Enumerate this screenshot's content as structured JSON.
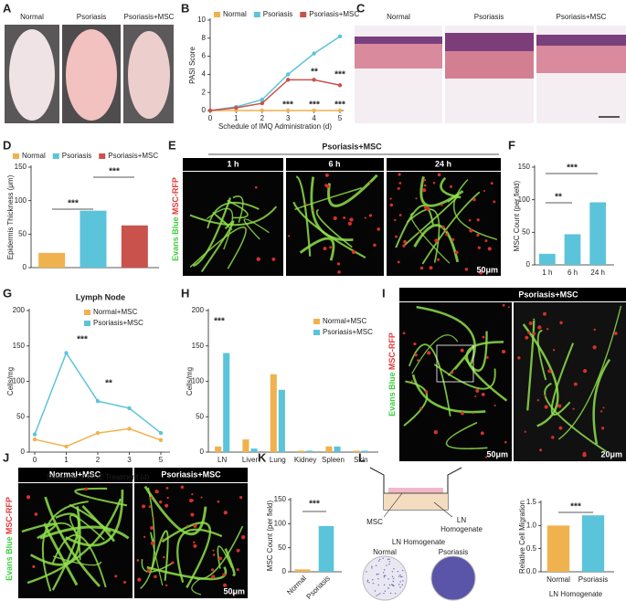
{
  "panel_labels": [
    "A",
    "B",
    "C",
    "D",
    "E",
    "F",
    "G",
    "H",
    "I",
    "J",
    "K",
    "L"
  ],
  "A": {
    "labels": [
      "Normal",
      "Psoriasis",
      "Psoriasis+MSC"
    ]
  },
  "C": {
    "labels": [
      "Normal",
      "Psoriasis",
      "Psoriasis+MSC"
    ]
  },
  "E": {
    "header": "Psoriasis+MSC",
    "columns": [
      "1 h",
      "6 h",
      "24 h"
    ],
    "stain": [
      "Evans Blue",
      "MSC-RFP"
    ],
    "scale": "50μm"
  },
  "I": {
    "header": "Psoriasis+MSC",
    "stain": [
      "Evans Blue",
      "MSC-RFP"
    ],
    "scales": [
      "50μm",
      "20μm"
    ]
  },
  "J": {
    "columns": [
      "Normal+MSC",
      "Psoriasis+MSC"
    ],
    "stain": [
      "Evans Blue",
      "MSC-RFP"
    ],
    "scale": "50μm"
  },
  "L_diagram": {
    "cell": "MSC",
    "medium": [
      "LN",
      "Homogenate"
    ],
    "plate_title": "LN Homogenate",
    "plates": [
      "Normal",
      "Psoriasis"
    ]
  },
  "chart_data": [
    {
      "type": "line",
      "x": [
        0,
        1,
        2,
        3,
        4,
        5
      ],
      "xlim": [
        0,
        5
      ],
      "xticks": [
        0,
        1,
        2,
        3,
        4,
        5
      ],
      "ylim": [
        0,
        10
      ],
      "yticks": [
        0,
        2,
        4,
        6,
        8,
        10
      ],
      "xlabel": "Schedule of IMQ Administration (d)",
      "ylabel": "PASI Score",
      "series": [
        {
          "name": "Normal",
          "color": "#f0b24e",
          "values": [
            0,
            0,
            0,
            0,
            0,
            0
          ]
        },
        {
          "name": "Psoriasis",
          "color": "#5bc4da",
          "values": [
            0,
            0.4,
            1.2,
            4.0,
            6.3,
            8.2
          ]
        },
        {
          "name": "Psoriasis+MSC",
          "color": "#c9524c",
          "values": [
            0,
            0.3,
            0.8,
            3.4,
            3.4,
            2.8
          ]
        }
      ],
      "annotations": [
        "**",
        "***",
        "***",
        "***",
        "***"
      ]
    },
    {
      "type": "bar",
      "ylim": [
        0,
        150
      ],
      "yticks": [
        0,
        50,
        100,
        150
      ],
      "ylabel": "Epidermis Thickness (μm)",
      "series": [
        {
          "name": "Normal",
          "color": "#f0b24e",
          "values": [
            22
          ]
        },
        {
          "name": "Psoriasis",
          "color": "#5bc4da",
          "values": [
            85
          ]
        },
        {
          "name": "Psoriasis+MSC",
          "color": "#c9524c",
          "values": [
            63
          ]
        }
      ],
      "annotations": [
        "***",
        "***"
      ]
    },
    {
      "type": "bar",
      "categories": [
        "1 h",
        "6 h",
        "24 h"
      ],
      "values": [
        17,
        47,
        96
      ],
      "color": "#5bc4da",
      "ylim": [
        0,
        150
      ],
      "yticks": [
        0,
        50,
        100,
        150
      ],
      "ylabel": "MSC Count (per field)",
      "annotations": [
        "**",
        "***"
      ]
    },
    {
      "type": "line",
      "title": "Lymph Node",
      "categories": [
        "0",
        "1",
        "2",
        "3",
        "5"
      ],
      "ylim": [
        0,
        200
      ],
      "yticks": [
        0,
        50,
        100,
        150,
        200
      ],
      "xlabel": "Schedule of MSC Treatment (d)",
      "ylabel": "Cells/mg",
      "series": [
        {
          "name": "Normal+MSC",
          "color": "#f0b24e",
          "values": [
            18,
            8,
            27,
            33,
            17
          ]
        },
        {
          "name": "Psoriasis+MSC",
          "color": "#5bc4da",
          "values": [
            25,
            140,
            72,
            62,
            27
          ]
        }
      ],
      "annotations": [
        "***",
        "**"
      ]
    },
    {
      "type": "bar",
      "categories": [
        "LN",
        "Liver",
        "Lung",
        "Kidney",
        "Spleen",
        "Skin"
      ],
      "ylim": [
        0,
        200
      ],
      "yticks": [
        0,
        50,
        100,
        150,
        200
      ],
      "ylabel": "Cells/mg",
      "series": [
        {
          "name": "Normal+MSC",
          "color": "#f0b24e",
          "values": [
            8,
            18,
            110,
            2,
            8,
            2
          ]
        },
        {
          "name": "Psoriasis+MSC",
          "color": "#5bc4da",
          "values": [
            140,
            5,
            88,
            2,
            8,
            2
          ]
        }
      ],
      "annotations": [
        "***"
      ]
    },
    {
      "type": "bar",
      "categories": [
        "Normal",
        "Psoriasis"
      ],
      "values": [
        5,
        95
      ],
      "colors": [
        "#f0b24e",
        "#5bc4da"
      ],
      "ylim": [
        0,
        150
      ],
      "yticks": [
        0,
        50,
        100,
        150
      ],
      "ylabel": "MSC Count (per field)",
      "annotations": [
        "***"
      ]
    },
    {
      "type": "bar",
      "categories": [
        "Normal",
        "Psoriasis"
      ],
      "values": [
        1.0,
        1.22
      ],
      "colors": [
        "#f0b24e",
        "#5bc4da"
      ],
      "ylim": [
        0,
        1.5
      ],
      "yticks": [
        {
          "value": 0,
          "label": "0.0"
        },
        0.5,
        {
          "value": 1,
          "label": "1.0"
        },
        1.5
      ],
      "xlabel": "LN Homogenate",
      "ylabel": "Relative Cell Migration",
      "annotations": [
        "***"
      ]
    }
  ]
}
